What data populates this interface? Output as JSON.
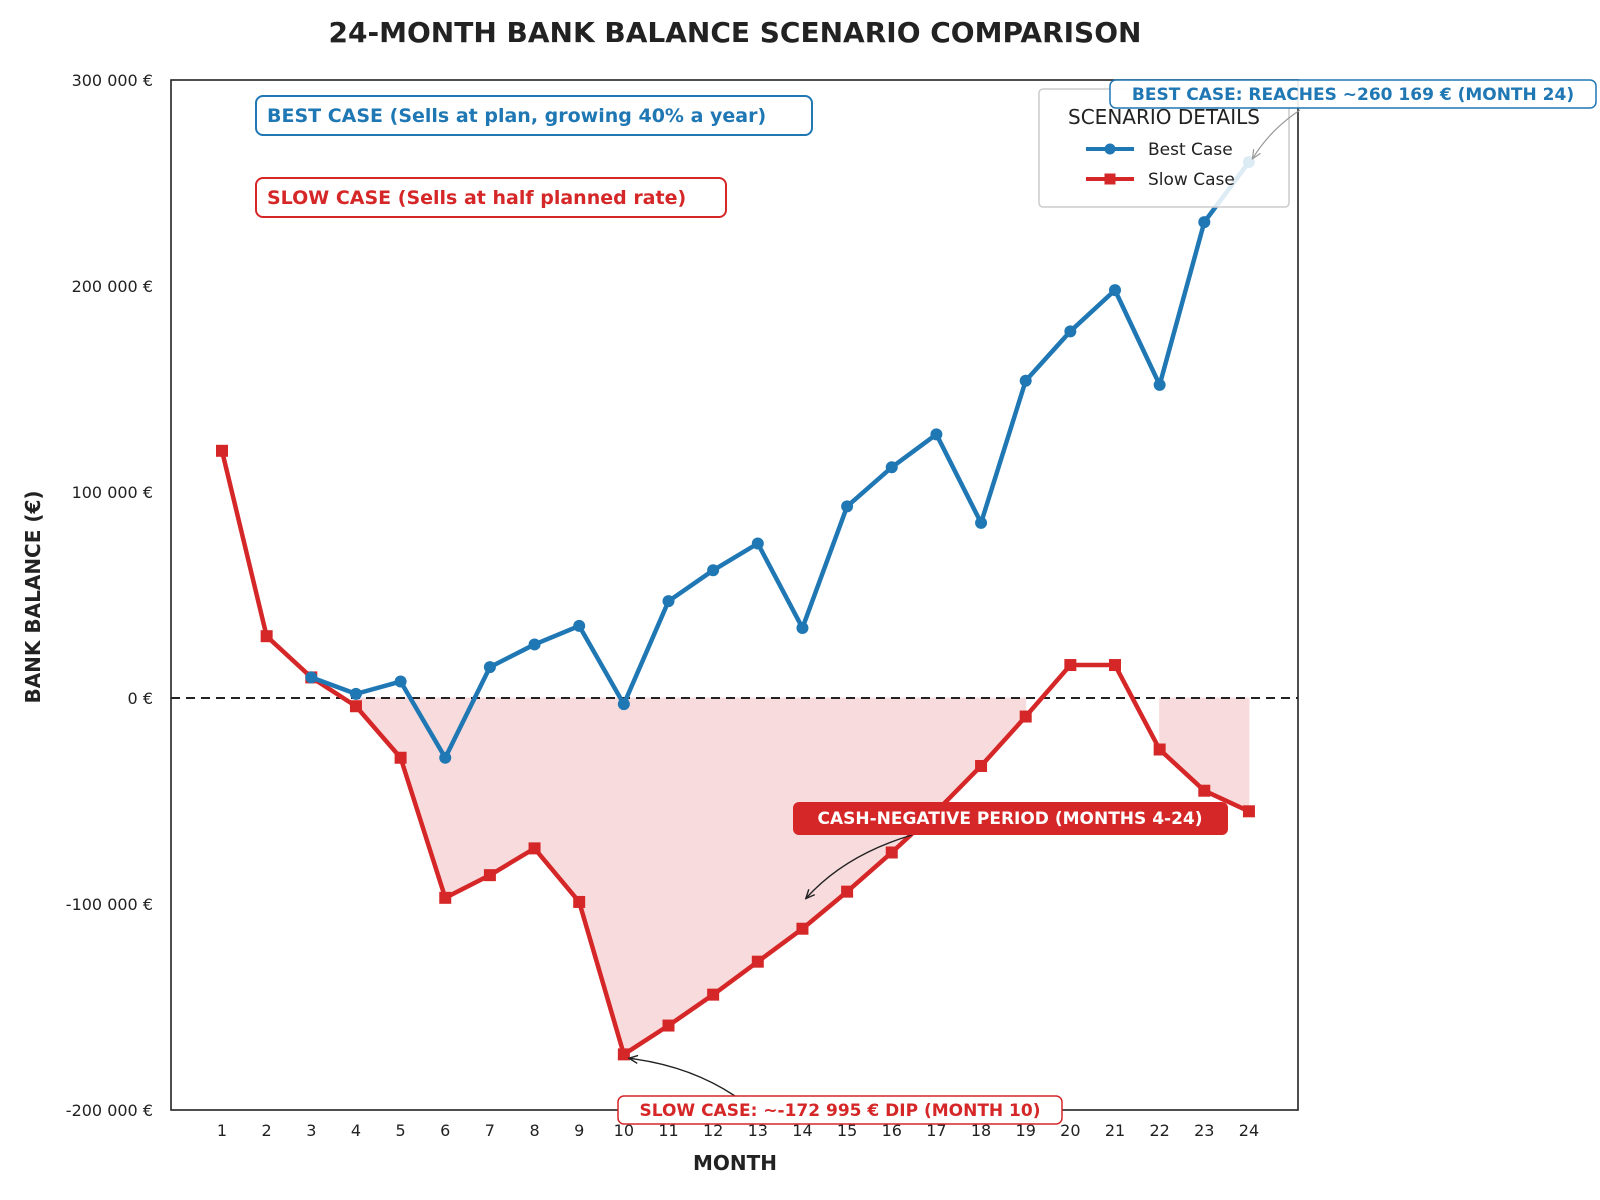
{
  "chart_data": {
    "type": "line",
    "title": "24-MONTH BANK BALANCE SCENARIO COMPARISON",
    "xlabel": "MONTH",
    "ylabel": "BANK BALANCE (€)",
    "ylim": [
      -200000,
      300000
    ],
    "yticks": [
      300000,
      200000,
      100000,
      0,
      -100000,
      -200000
    ],
    "ytick_labels": [
      "300 000 €",
      "200 000 €",
      "100 000 €",
      "0 €",
      "-100 000 €",
      "-200 000 €"
    ],
    "categories": [
      1,
      2,
      3,
      4,
      5,
      6,
      7,
      8,
      9,
      10,
      11,
      12,
      13,
      14,
      15,
      16,
      17,
      18,
      19,
      20,
      21,
      22,
      23,
      24
    ],
    "series": [
      {
        "name": "Best Case",
        "color": "#1f77b4",
        "marker": "circle",
        "values": [
          120000,
          30000,
          10000,
          2000,
          8000,
          -29000,
          15000,
          26000,
          35000,
          -3000,
          47000,
          62000,
          75000,
          34000,
          93000,
          112000,
          128000,
          85000,
          154000,
          178000,
          198000,
          152000,
          231000,
          260169
        ]
      },
      {
        "name": "Slow Case",
        "color": "#d62728",
        "marker": "square",
        "values": [
          120000,
          30000,
          10000,
          -4000,
          -29000,
          -97000,
          -86000,
          -73000,
          -99000,
          -172995,
          -159000,
          -144000,
          -128000,
          -112000,
          -94000,
          -75000,
          -55000,
          -33000,
          -9000,
          16000,
          16000,
          -25000,
          -45000,
          -55000
        ]
      }
    ],
    "negative_fill_color": "#f8dcdd",
    "zero_line": true,
    "grid": false,
    "legend": {
      "title": "SCENARIO DETAILS",
      "placement": "top-right",
      "entries": [
        "Best Case",
        "Slow Case"
      ]
    },
    "boxes": {
      "best": "BEST CASE (Sells at plan, growing 40% a year)",
      "slow": "SLOW CASE (Sells at half planned rate)"
    },
    "annotations": {
      "best_peak": {
        "text": "BEST CASE: REACHES ~260 169 € (MONTH 24)",
        "month": 24,
        "value": 260169
      },
      "slow_dip": {
        "text": "SLOW CASE: ~-172 995 € DIP (MONTH 10)",
        "month": 10,
        "value": -172995
      },
      "negative_period": {
        "text": "CASH-NEGATIVE PERIOD (MONTHS 4-24)",
        "month": 14,
        "value": -98000
      }
    }
  }
}
